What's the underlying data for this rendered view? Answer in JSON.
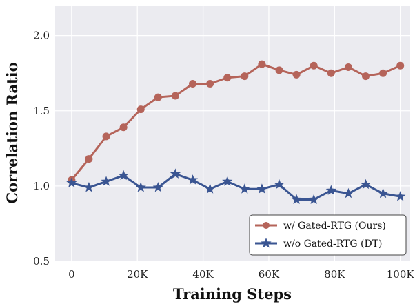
{
  "chart_data": {
    "type": "line",
    "xlabel": "Training Steps",
    "ylabel": "Correlation Ratio",
    "xlim": [
      -5000,
      103000
    ],
    "ylim": [
      0.5,
      2.2
    ],
    "xticks": [
      0,
      20000,
      40000,
      60000,
      80000,
      100000
    ],
    "xtick_labels": [
      "0",
      "20K",
      "40K",
      "60K",
      "80K",
      "100K"
    ],
    "yticks": [
      0.5,
      1.0,
      1.5,
      2.0
    ],
    "ytick_labels": [
      "0.5",
      "1.0",
      "1.5",
      "2.0"
    ],
    "grid": true,
    "legend_position": "bottom-right",
    "x": [
      0,
      5263,
      10526,
      15789,
      21053,
      26316,
      31579,
      36842,
      42105,
      47368,
      52632,
      57895,
      63158,
      68421,
      73684,
      78947,
      84211,
      89474,
      94737,
      100000
    ],
    "series": [
      {
        "name": "w/ Gated-RTG (Ours)",
        "color": "#b5645a",
        "marker": "circle",
        "values": [
          1.04,
          1.18,
          1.33,
          1.39,
          1.51,
          1.59,
          1.6,
          1.68,
          1.68,
          1.72,
          1.73,
          1.81,
          1.77,
          1.74,
          1.8,
          1.75,
          1.79,
          1.73,
          1.75,
          1.8
        ]
      },
      {
        "name": "w/o Gated-RTG (DT)",
        "color": "#3a5592",
        "marker": "star",
        "values": [
          1.02,
          0.99,
          1.03,
          1.07,
          0.99,
          0.99,
          1.08,
          1.04,
          0.98,
          1.03,
          0.98,
          0.98,
          1.01,
          0.91,
          0.91,
          0.97,
          0.95,
          1.01,
          0.95,
          0.93
        ]
      }
    ]
  }
}
